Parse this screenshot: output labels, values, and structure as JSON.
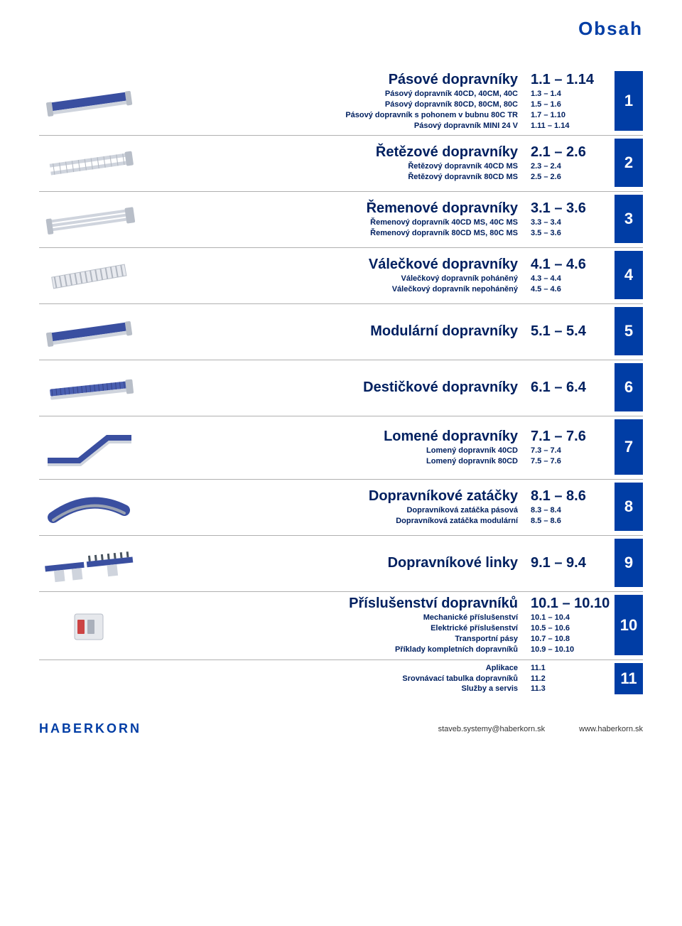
{
  "header": {
    "title": "Obsah"
  },
  "accent_color": "#003da5",
  "text_color": "#002060",
  "sections": [
    {
      "title": "Pásové dopravníky",
      "page_range": "1.1 – 1.14",
      "tab": "1",
      "subs": [
        {
          "label": "Pásový dopravník 40CD, 40CM, 40C",
          "pages": "1.3 – 1.4"
        },
        {
          "label": "Pásový dopravník 80CD, 80CM, 80C",
          "pages": "1.5 – 1.6"
        },
        {
          "label": "Pásový dopravník s pohonem v bubnu 80C TR",
          "pages": "1.7 – 1.10"
        },
        {
          "label": "Pásový dopravník MINI 24 V",
          "pages": "1.11 – 1.14"
        }
      ],
      "thumb": "belt"
    },
    {
      "title": "Řetězové dopravníky",
      "page_range": "2.1 – 2.6",
      "tab": "2",
      "subs": [
        {
          "label": "Řetězový dopravník 40CD MS",
          "pages": "2.3 – 2.4"
        },
        {
          "label": "Řetězový dopravník 80CD MS",
          "pages": "2.5 – 2.6"
        }
      ],
      "thumb": "chain"
    },
    {
      "title": "Řemenové dopravníky",
      "page_range": "3.1 – 3.6",
      "tab": "3",
      "subs": [
        {
          "label": "Řemenový dopravník 40CD MS, 40C MS",
          "pages": "3.3 – 3.4"
        },
        {
          "label": "Řemenový dopravník 80CD MS, 80C MS",
          "pages": "3.5 – 3.6"
        }
      ],
      "thumb": "strap"
    },
    {
      "title": "Válečkové dopravníky",
      "page_range": "4.1 – 4.6",
      "tab": "4",
      "subs": [
        {
          "label": "Válečkový dopravník poháněný",
          "pages": "4.3 – 4.4"
        },
        {
          "label": "Válečkový dopravník nepoháněný",
          "pages": "4.5 – 4.6"
        }
      ],
      "thumb": "roller"
    },
    {
      "title": "Modulární dopravníky",
      "page_range": "5.1 – 5.4",
      "tab": "5",
      "subs": [],
      "thumb": "modular"
    },
    {
      "title": "Destičkové dopravníky",
      "page_range": "6.1 – 6.4",
      "tab": "6",
      "subs": [],
      "thumb": "plate"
    },
    {
      "title": "Lomené dopravníky",
      "page_range": "7.1 – 7.6",
      "tab": "7",
      "subs": [
        {
          "label": "Lomený dopravník 40CD",
          "pages": "7.3 – 7.4"
        },
        {
          "label": "Lomený dopravník 80CD",
          "pages": "7.5 – 7.6"
        }
      ],
      "thumb": "incline"
    },
    {
      "title": "Dopravníkové zatáčky",
      "page_range": "8.1 – 8.6",
      "tab": "8",
      "subs": [
        {
          "label": "Dopravníková zatáčka pásová",
          "pages": "8.3 – 8.4"
        },
        {
          "label": "Dopravníková zatáčka modulární",
          "pages": "8.5 – 8.6"
        }
      ],
      "thumb": "curve"
    },
    {
      "title": "Dopravníkové linky",
      "page_range": "9.1 – 9.4",
      "tab": "9",
      "subs": [],
      "thumb": "line"
    },
    {
      "title": "Příslušenství dopravníků",
      "page_range": "10.1 – 10.10",
      "tab": "10",
      "subs": [
        {
          "label": "Mechanické příslušenství",
          "pages": "10.1 – 10.4"
        },
        {
          "label": "Elektrické příslušenství",
          "pages": "10.5 – 10.6"
        },
        {
          "label": "Transportní pásy",
          "pages": "10.7 – 10.8"
        },
        {
          "label": "Příklady kompletních dopravníků",
          "pages": "10.9 – 10.10"
        }
      ],
      "thumb": "box"
    },
    {
      "title": "",
      "page_range": "",
      "tab": "11",
      "subs": [
        {
          "label": "Aplikace",
          "pages": "11.1"
        },
        {
          "label": "Srovnávací tabulka dopravníků",
          "pages": "11.2"
        },
        {
          "label": "Služby a servis",
          "pages": "11.3"
        }
      ],
      "thumb": "none"
    }
  ],
  "footer": {
    "brand": "HABERKORN",
    "email": "staveb.systemy@haberkorn.sk",
    "web": "www.haberkorn.sk"
  }
}
